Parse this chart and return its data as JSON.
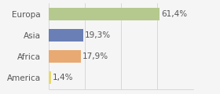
{
  "categories": [
    "Europa",
    "Asia",
    "Africa",
    "America"
  ],
  "values": [
    61.4,
    19.3,
    17.9,
    1.4
  ],
  "bar_colors": [
    "#b5c98e",
    "#6a7fb5",
    "#e8aa72",
    "#e8d870"
  ],
  "labels": [
    "61,4%",
    "19,3%",
    "17,9%",
    "1,4%"
  ],
  "background_color": "#f5f5f5",
  "xlim": [
    0,
    80
  ],
  "bar_height": 0.6,
  "label_fontsize": 7.5,
  "tick_fontsize": 7.5,
  "grid_ticks": [
    0,
    20,
    40,
    60,
    80
  ]
}
